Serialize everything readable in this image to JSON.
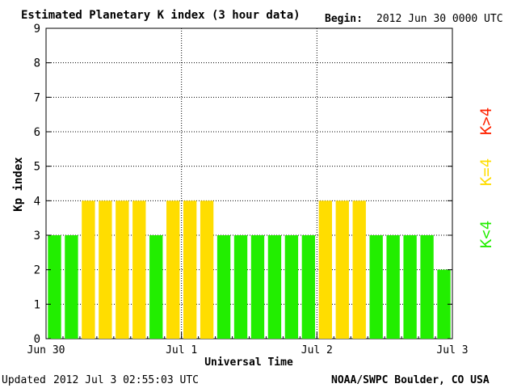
{
  "header": {
    "title": "Estimated Planetary K index (3 hour data)",
    "begin_label": "Begin:",
    "begin_value": "2012 Jun 30 0000 UTC"
  },
  "footer": {
    "updated_label": "Updated",
    "updated_value": "2012 Jul  3 02:55:03 UTC",
    "source": "NOAA/SWPC Boulder, CO USA"
  },
  "legend": [
    {
      "label": "K<4",
      "color": "#22ee00"
    },
    {
      "label": "K=4",
      "color": "#ffdd00"
    },
    {
      "label": "K>4",
      "color": "#ff2200"
    }
  ],
  "chart_data": {
    "type": "bar",
    "title": "Estimated Planetary K index (3 hour data)",
    "xlabel": "Universal Time",
    "ylabel": "Kp index",
    "ylim": [
      0,
      9
    ],
    "yticks": [
      "0",
      "1",
      "2",
      "3",
      "4",
      "5",
      "6",
      "7",
      "8",
      "9"
    ],
    "xticks": [
      {
        "label": "Jun 30",
        "slot": 0
      },
      {
        "label": "Jul 1",
        "slot": 8
      },
      {
        "label": "Jul 2",
        "slot": 16
      },
      {
        "label": "Jul 3",
        "slot": 24
      }
    ],
    "slots": 24,
    "values": [
      3,
      3,
      4,
      4,
      4,
      4,
      3,
      4,
      4,
      4,
      3,
      3,
      3,
      3,
      3,
      3,
      4,
      4,
      4,
      3,
      3,
      3,
      3,
      2
    ],
    "colors": {
      "below": "#22ee00",
      "equal": "#ffdd00",
      "above": "#ff2200"
    },
    "grid": true
  }
}
